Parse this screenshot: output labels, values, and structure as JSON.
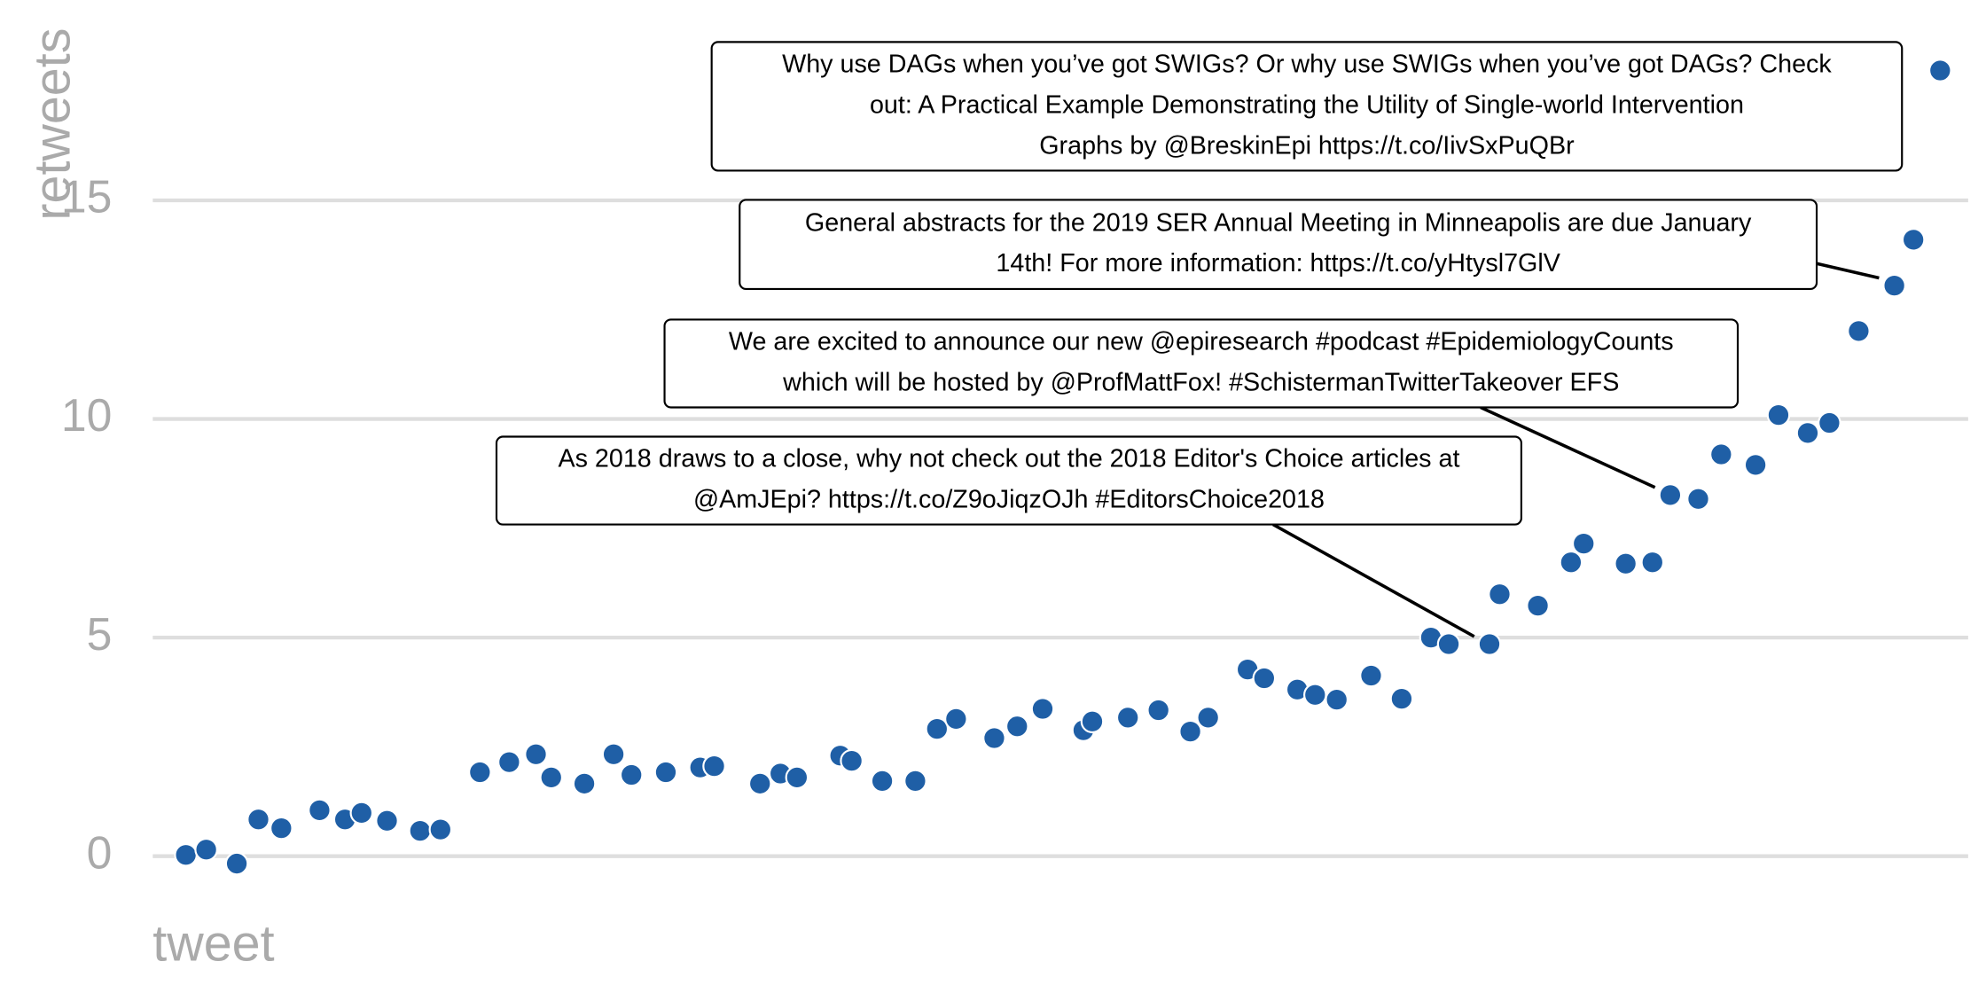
{
  "chart_data": {
    "type": "scatter",
    "xlabel": "tweet",
    "ylabel": "retweets",
    "x": [
      0.8,
      1.6,
      2.8,
      3.65,
      4.55,
      6.05,
      7.05,
      7.7,
      8.7,
      10,
      10.8,
      12.35,
      13.5,
      14.55,
      15.15,
      16.45,
      17.6,
      18.3,
      19.65,
      21,
      21.55,
      23.35,
      24.15,
      24.8,
      26.5,
      26.95,
      28.15,
      29.45,
      30.3,
      31.05,
      32.55,
      33.45,
      34.45,
      36.05,
      36.4,
      37.8,
      39,
      40.25,
      40.95,
      42.5,
      43.15,
      44.45,
      45.15,
      46,
      47.35,
      48.55,
      49.7,
      50.4,
      52,
      52.4,
      53.9,
      55.2,
      55.7,
      57.35,
      58.4,
      59.1,
      60.2,
      61.1,
      62.45,
      63.35,
      64.5,
      65.35,
      66.5,
      67.9,
      68.65,
      69.7
    ],
    "values": [
      0.03,
      0.15,
      -0.17,
      0.84,
      0.64,
      1.05,
      0.84,
      0.99,
      0.81,
      0.58,
      0.61,
      1.92,
      2.15,
      2.33,
      1.8,
      1.66,
      2.33,
      1.86,
      1.92,
      2.03,
      2.06,
      1.66,
      1.89,
      1.8,
      2.3,
      2.18,
      1.72,
      1.72,
      2.91,
      3.14,
      2.7,
      2.97,
      3.37,
      2.88,
      3.08,
      3.17,
      3.34,
      2.85,
      3.17,
      4.27,
      4.07,
      3.81,
      3.69,
      3.58,
      4.13,
      3.6,
      5.0,
      4.85,
      4.85,
      5.99,
      5.73,
      6.72,
      7.15,
      6.69,
      6.72,
      8.26,
      8.17,
      9.19,
      8.95,
      10.09,
      9.68,
      9.91,
      12.01,
      13.05,
      14.1,
      17.97
    ],
    "color": "#1f5fa6",
    "xlim": [
      -0.5,
      70.8
    ],
    "ylim": [
      -0.8,
      19
    ],
    "yticks": [
      0,
      5,
      10,
      15
    ],
    "grid": true,
    "annotations": [
      {
        "lines": [
          "Why use DAGs when you’ve got SWIGs? Or why use SWIGs when you’ve got DAGs? Check",
          "out: A Practical Example Demonstrating the Utility of Single-world Intervention",
          "Graphs by @BreskinEpi https://t.co/IivSxPuQBr"
        ]
      },
      {
        "lines": [
          "General abstracts for the 2019 SER Annual Meeting in Minneapolis are due January",
          "14th! For more information: https://t.co/yHtysl7GlV"
        ]
      },
      {
        "lines": [
          "We are excited to announce our new @epiresearch #podcast #EpidemiologyCounts",
          "which will be hosted by @ProfMattFox! #SchistermanTwitterTakeover EFS"
        ]
      },
      {
        "lines": [
          "As 2018 draws to a close, why not check out the 2018 Editor's Choice articles at",
          "@AmJEpi? https://t.co/Z9oJiqzOJh #EditorsChoice2018"
        ]
      }
    ]
  }
}
